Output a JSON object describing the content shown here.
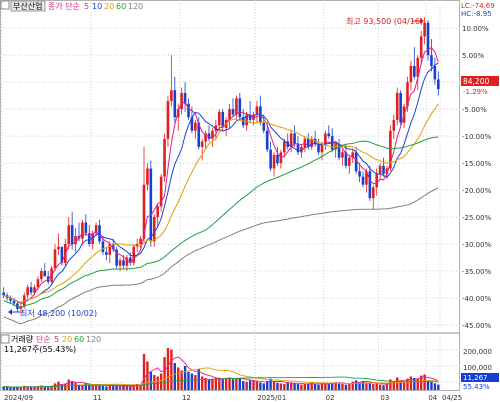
{
  "toolbar": {
    "stock_name": "부산산업",
    "ma_type_label": "종가 단순",
    "ma_periods": [
      "5",
      "10",
      "20",
      "60",
      "120"
    ],
    "ma_colors": [
      "#e0208a",
      "#2040e0",
      "#e0a000",
      "#20a040",
      "#808080"
    ]
  },
  "volume_header": {
    "label": "거래량",
    "ma_type_label": "단순",
    "ma_periods": [
      "5",
      "20",
      "60",
      "120"
    ],
    "current_value": "11,267주(55.43%)"
  },
  "top_right_info": {
    "lc_label": "LC:-74.69",
    "hc_label": "HC:-8.95"
  },
  "annotations": {
    "high_label": "최고 93,500 (04/16)",
    "low_label": "최저 48,200 (10/02)"
  },
  "price_tag": {
    "price": "84,200",
    "change": "-1.29%"
  },
  "volume_tag": {
    "volume": "11,267",
    "ratio": "55.43%"
  },
  "colors": {
    "up": "#e02020",
    "down": "#1a3fd0",
    "grid": "#d0d0d0",
    "price_tag_bg": "#e02020"
  },
  "chart_data": {
    "type": "candlestick",
    "x_tick_labels": [
      "2024/09",
      "11",
      "12",
      "2025/01",
      "02",
      "03",
      "04",
      "04/25"
    ],
    "y_axis_labels": [
      "10.00%",
      "5.00%",
      "-1.29%",
      "-5.00%",
      "-10.00%",
      "-15.00%",
      "-20.00%",
      "-25.00%",
      "-30.00%",
      "-35.00%",
      "-40.00%",
      "-45.00%"
    ],
    "volume_axis_labels": [
      "200,000",
      "100,000",
      "11,267",
      "55.43%"
    ],
    "series": [
      {
        "name": "5",
        "values": []
      },
      {
        "name": "10",
        "values": []
      },
      {
        "name": "20",
        "values": []
      },
      {
        "name": "60",
        "values": []
      },
      {
        "name": "120",
        "values": []
      }
    ],
    "ohlc_percent_from_reference": [
      [
        -39.0,
        -38.0,
        -40.0,
        -39.5
      ],
      [
        -39.5,
        -39.0,
        -40.5,
        -40.0
      ],
      [
        -40.0,
        -39.5,
        -41.0,
        -40.5
      ],
      [
        -40.5,
        -40.0,
        -41.5,
        -41.0
      ],
      [
        -41.0,
        -40.5,
        -42.5,
        -42.0
      ],
      [
        -42.0,
        -41.0,
        -43.0,
        -41.5
      ],
      [
        -41.5,
        -39.0,
        -42.0,
        -39.5
      ],
      [
        -39.5,
        -37.5,
        -40.0,
        -38.0
      ],
      [
        -38.0,
        -37.0,
        -39.5,
        -39.0
      ],
      [
        -39.0,
        -37.5,
        -39.5,
        -38.0
      ],
      [
        -38.0,
        -36.0,
        -38.5,
        -36.5
      ],
      [
        -36.5,
        -34.5,
        -37.0,
        -35.0
      ],
      [
        -35.0,
        -33.5,
        -36.0,
        -36.0
      ],
      [
        -36.0,
        -35.0,
        -37.5,
        -37.0
      ],
      [
        -37.0,
        -34.0,
        -37.5,
        -34.5
      ],
      [
        -34.5,
        -30.0,
        -35.0,
        -31.0
      ],
      [
        -31.0,
        -28.0,
        -32.0,
        -30.5
      ],
      [
        -30.5,
        -31.5,
        -34.0,
        -33.5
      ],
      [
        -33.5,
        -29.0,
        -34.0,
        -30.0
      ],
      [
        -30.0,
        -25.0,
        -31.0,
        -26.5
      ],
      [
        -26.5,
        -24.0,
        -31.0,
        -30.0
      ],
      [
        -30.0,
        -27.0,
        -31.5,
        -28.5
      ],
      [
        -28.5,
        -26.0,
        -29.5,
        -29.0
      ],
      [
        -29.0,
        -25.5,
        -30.0,
        -26.0
      ],
      [
        -26.0,
        -24.5,
        -28.5,
        -28.0
      ],
      [
        -28.0,
        -26.5,
        -30.5,
        -30.0
      ],
      [
        -30.0,
        -27.5,
        -31.0,
        -28.0
      ],
      [
        -28.0,
        -26.0,
        -28.5,
        -26.5
      ],
      [
        -26.5,
        -25.5,
        -30.0,
        -29.5
      ],
      [
        -29.5,
        -28.5,
        -32.0,
        -31.5
      ],
      [
        -31.5,
        -30.5,
        -33.0,
        -32.0
      ],
      [
        -32.0,
        -29.5,
        -33.5,
        -30.0
      ],
      [
        -30.0,
        -29.0,
        -31.5,
        -31.0
      ],
      [
        -31.0,
        -30.5,
        -34.5,
        -34.0
      ],
      [
        -34.0,
        -32.5,
        -35.0,
        -33.0
      ],
      [
        -33.0,
        -32.0,
        -34.5,
        -34.0
      ],
      [
        -34.0,
        -32.0,
        -35.0,
        -32.5
      ],
      [
        -32.5,
        -31.5,
        -34.0,
        -33.5
      ],
      [
        -33.5,
        -30.0,
        -34.0,
        -30.5
      ],
      [
        -30.5,
        -29.0,
        -31.5,
        -30.0
      ],
      [
        -30.0,
        -28.5,
        -31.0,
        -29.0
      ],
      [
        -29.0,
        -12.0,
        -29.5,
        -19.0
      ],
      [
        -19.0,
        -15.0,
        -20.0,
        -16.0
      ],
      [
        -16.0,
        -14.5,
        -30.5,
        -29.5
      ],
      [
        -29.5,
        -24.5,
        -30.5,
        -25.0
      ],
      [
        -25.0,
        -22.5,
        -27.0,
        -23.0
      ],
      [
        -23.0,
        -17.0,
        -24.0,
        -17.5
      ],
      [
        -17.5,
        -9.5,
        -18.5,
        -10.5
      ],
      [
        -10.5,
        -2.5,
        -12.0,
        -3.5
      ],
      [
        -3.5,
        5.0,
        -4.5,
        -1.5
      ],
      [
        -1.5,
        1.0,
        -7.5,
        -6.5
      ],
      [
        -6.5,
        -4.0,
        -9.0,
        -5.0
      ],
      [
        -5.0,
        -1.0,
        -6.0,
        -2.0
      ],
      [
        -2.0,
        0.0,
        -5.5,
        -4.0
      ],
      [
        -4.0,
        -3.0,
        -7.0,
        -6.5
      ],
      [
        -6.5,
        -4.5,
        -9.5,
        -9.0
      ],
      [
        -9.0,
        -7.0,
        -10.5,
        -7.5
      ],
      [
        -7.5,
        -6.5,
        -12.5,
        -12.0
      ],
      [
        -12.0,
        -10.5,
        -14.5,
        -11.0
      ],
      [
        -11.0,
        -9.0,
        -12.5,
        -9.5
      ],
      [
        -9.5,
        -8.0,
        -11.0,
        -10.5
      ],
      [
        -10.5,
        -8.5,
        -12.0,
        -9.0
      ],
      [
        -9.0,
        -7.0,
        -10.5,
        -8.0
      ],
      [
        -8.0,
        -5.0,
        -9.0,
        -5.5
      ],
      [
        -5.5,
        -5.0,
        -9.0,
        -8.5
      ],
      [
        -8.5,
        -6.5,
        -10.0,
        -7.0
      ],
      [
        -7.0,
        -4.0,
        -8.5,
        -5.0
      ],
      [
        -5.0,
        -3.0,
        -6.5,
        -6.0
      ],
      [
        -6.0,
        -2.5,
        -7.0,
        -3.0
      ],
      [
        -3.0,
        -2.0,
        -7.0,
        -6.5
      ],
      [
        -6.5,
        -5.0,
        -8.5,
        -8.0
      ],
      [
        -8.0,
        -5.5,
        -9.0,
        -6.0
      ],
      [
        -6.0,
        -3.5,
        -7.5,
        -7.0
      ],
      [
        -7.0,
        -5.5,
        -8.0,
        -6.0
      ],
      [
        -6.0,
        -3.5,
        -7.5,
        -4.5
      ],
      [
        -4.5,
        -2.5,
        -8.0,
        -7.5
      ],
      [
        -7.5,
        -6.0,
        -9.5,
        -9.0
      ],
      [
        -9.0,
        -7.5,
        -13.0,
        -12.5
      ],
      [
        -12.5,
        -11.0,
        -16.5,
        -16.0
      ],
      [
        -16.0,
        -13.0,
        -17.5,
        -13.5
      ],
      [
        -13.5,
        -12.0,
        -15.5,
        -15.0
      ],
      [
        -15.0,
        -12.5,
        -16.0,
        -13.0
      ],
      [
        -13.0,
        -10.5,
        -14.0,
        -11.0
      ],
      [
        -11.0,
        -9.5,
        -12.5,
        -12.0
      ],
      [
        -12.0,
        -9.0,
        -13.0,
        -9.5
      ],
      [
        -9.5,
        -8.0,
        -12.0,
        -11.5
      ],
      [
        -11.5,
        -10.0,
        -13.5,
        -13.0
      ],
      [
        -13.0,
        -11.5,
        -14.0,
        -12.0
      ],
      [
        -12.0,
        -10.0,
        -13.0,
        -10.5
      ],
      [
        -10.5,
        -9.5,
        -12.5,
        -12.0
      ],
      [
        -12.0,
        -10.0,
        -12.5,
        -10.5
      ],
      [
        -10.5,
        -9.0,
        -12.0,
        -11.5
      ],
      [
        -11.5,
        -10.5,
        -13.5,
        -13.0
      ],
      [
        -13.0,
        -11.0,
        -14.5,
        -11.5
      ],
      [
        -11.5,
        -9.0,
        -12.5,
        -9.5
      ],
      [
        -9.5,
        -8.0,
        -10.5,
        -10.0
      ],
      [
        -10.0,
        -8.5,
        -13.0,
        -12.5
      ],
      [
        -12.5,
        -11.0,
        -14.0,
        -11.5
      ],
      [
        -11.5,
        -10.5,
        -14.5,
        -14.0
      ],
      [
        -14.0,
        -12.5,
        -15.5,
        -13.0
      ],
      [
        -13.0,
        -11.5,
        -16.0,
        -15.5
      ],
      [
        -15.5,
        -13.5,
        -17.0,
        -14.0
      ],
      [
        -14.0,
        -12.5,
        -15.0,
        -13.0
      ],
      [
        -13.0,
        -12.0,
        -17.0,
        -16.5
      ],
      [
        -16.5,
        -15.0,
        -18.5,
        -17.5
      ],
      [
        -17.5,
        -16.5,
        -19.5,
        -19.0
      ],
      [
        -19.0,
        -16.0,
        -20.5,
        -16.5
      ],
      [
        -16.5,
        -15.5,
        -22.0,
        -21.5
      ],
      [
        -21.5,
        -19.0,
        -23.5,
        -19.5
      ],
      [
        -19.5,
        -16.0,
        -21.0,
        -17.0
      ],
      [
        -17.0,
        -15.0,
        -18.0,
        -15.5
      ],
      [
        -15.5,
        -14.0,
        -17.5,
        -17.0
      ],
      [
        -17.0,
        -15.5,
        -18.0,
        -16.0
      ],
      [
        -16.0,
        -8.0,
        -16.5,
        -9.0
      ],
      [
        -9.0,
        -6.0,
        -10.5,
        -7.0
      ],
      [
        -7.0,
        -1.0,
        -8.0,
        -2.0
      ],
      [
        -2.0,
        -1.5,
        -8.0,
        -7.5
      ],
      [
        -7.5,
        -4.0,
        -8.5,
        -4.5
      ],
      [
        -4.5,
        1.0,
        -5.5,
        0.0
      ],
      [
        0.0,
        4.0,
        -1.5,
        3.0
      ],
      [
        3.0,
        6.5,
        0.5,
        1.0
      ],
      [
        1.0,
        5.0,
        -1.5,
        4.5
      ],
      [
        4.5,
        9.5,
        3.5,
        8.5
      ],
      [
        8.5,
        12.0,
        7.0,
        11.0
      ],
      [
        11.0,
        11.5,
        4.0,
        5.0
      ],
      [
        5.0,
        8.0,
        2.0,
        3.0
      ],
      [
        3.0,
        4.5,
        -0.5,
        0.5
      ],
      [
        0.5,
        2.0,
        -2.5,
        -1.3
      ]
    ],
    "volume_values": [
      12,
      10,
      8,
      9,
      11,
      9,
      14,
      12,
      9,
      10,
      13,
      15,
      11,
      9,
      14,
      22,
      28,
      18,
      20,
      35,
      30,
      25,
      16,
      18,
      22,
      20,
      17,
      15,
      18,
      14,
      12,
      16,
      13,
      14,
      11,
      12,
      15,
      12,
      18,
      20,
      17,
      120,
      95,
      60,
      50,
      45,
      55,
      110,
      140,
      135,
      90,
      75,
      65,
      80,
      60,
      55,
      50,
      70,
      45,
      40,
      35,
      38,
      42,
      40,
      35,
      38,
      42,
      36,
      40,
      38,
      30,
      28,
      32,
      30,
      28,
      25,
      22,
      30,
      38,
      28,
      24,
      22,
      20,
      26,
      24,
      22,
      20,
      18,
      20,
      22,
      24,
      20,
      18,
      22,
      20,
      24,
      22,
      26,
      24,
      20,
      18,
      22,
      28,
      32,
      26,
      30,
      25,
      22,
      20,
      24,
      18,
      16,
      20,
      35,
      30,
      42,
      28,
      26,
      38,
      45,
      40,
      38,
      48,
      52,
      30,
      28,
      22,
      18
    ],
    "ylim_percent": [
      -45,
      13
    ]
  }
}
